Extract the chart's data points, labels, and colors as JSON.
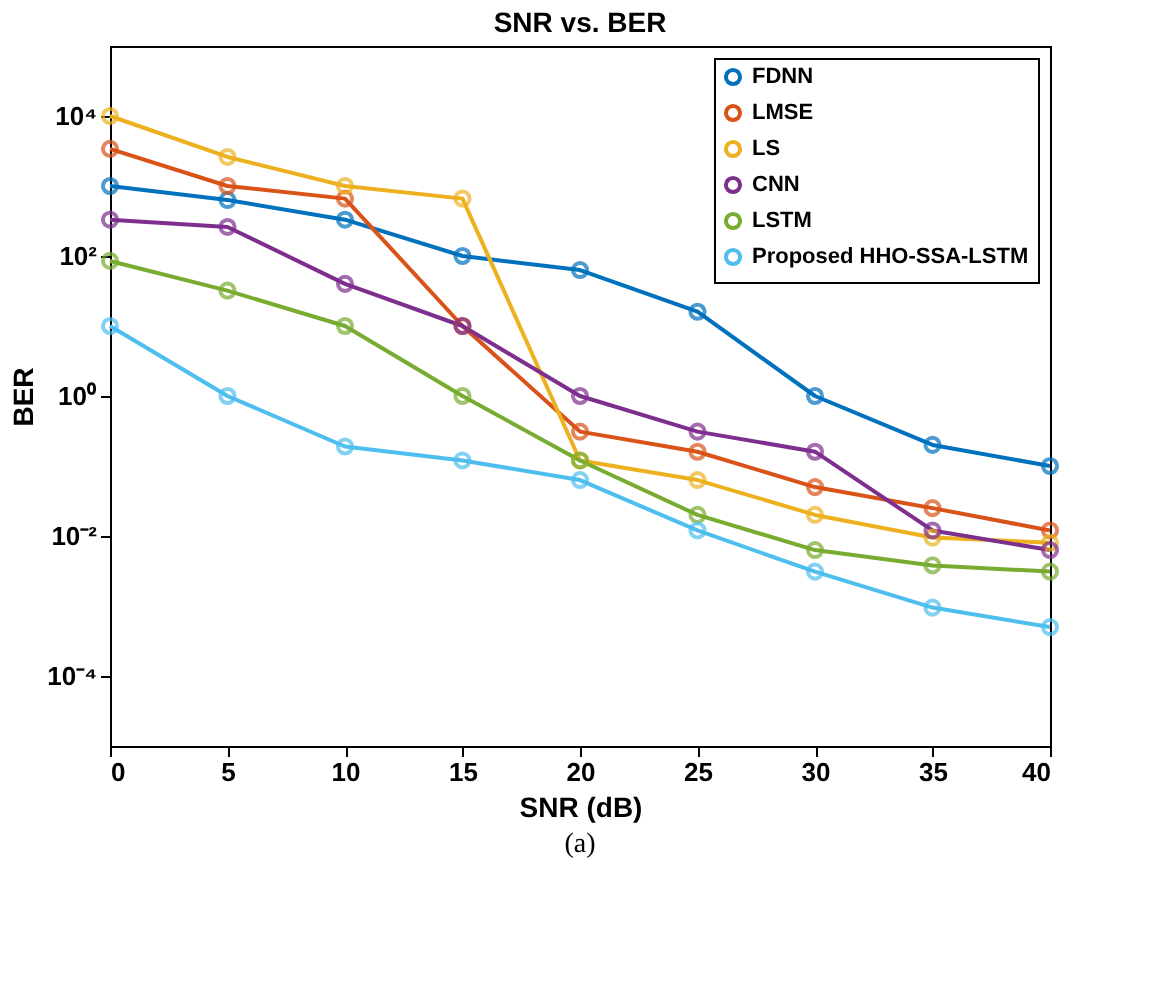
{
  "chart_data": {
    "type": "line",
    "title": "SNR vs. BER",
    "xlabel": "SNR (dB)",
    "ylabel": "BER",
    "annotations": [
      "(a)"
    ],
    "x": [
      0,
      5,
      10,
      15,
      20,
      25,
      30,
      35,
      40
    ],
    "series": [
      {
        "name": "FDNN",
        "color": "#0072bd",
        "values": [
          1000,
          630,
          330,
          100,
          63,
          16,
          1,
          0.2,
          0.1
        ]
      },
      {
        "name": "LMSE",
        "color": "#d95319",
        "values": [
          3400,
          1000,
          660,
          10,
          0.31,
          0.16,
          0.05,
          0.025,
          0.012
        ]
      },
      {
        "name": "LS",
        "color": "#edb120",
        "values": [
          10000,
          2600,
          1000,
          660,
          0.12,
          0.063,
          0.02,
          0.0095,
          0.008
        ]
      },
      {
        "name": "CNN",
        "color": "#7e2f8e",
        "values": [
          330,
          260,
          40,
          10,
          1,
          0.31,
          0.16,
          0.012,
          0.0063
        ]
      },
      {
        "name": "LSTM",
        "color": "#77ac30",
        "values": [
          85,
          32,
          10,
          1,
          0.12,
          0.02,
          0.0063,
          0.0038,
          0.0031
        ]
      },
      {
        "name": "Proposed HHO-SSA-LSTM",
        "color": "#4dbeee",
        "values": [
          10,
          1,
          0.19,
          0.12,
          0.063,
          0.012,
          0.0031,
          0.00095,
          0.0005
        ]
      }
    ],
    "xlim": [
      0,
      40
    ],
    "xticks": [
      0,
      5,
      10,
      15,
      20,
      25,
      30,
      35,
      40
    ],
    "ylim": [
      1e-05,
      100000
    ],
    "yticks": [
      {
        "value": 0.0001,
        "label": "10⁻⁴"
      },
      {
        "value": 0.01,
        "label": "10⁻²"
      },
      {
        "value": 1,
        "label": "10⁰"
      },
      {
        "value": 100,
        "label": "10²"
      },
      {
        "value": 10000,
        "label": "10⁴"
      }
    ],
    "log": "y",
    "grid": false,
    "legend": "top right",
    "marker": "circle",
    "line_style": "solid"
  }
}
